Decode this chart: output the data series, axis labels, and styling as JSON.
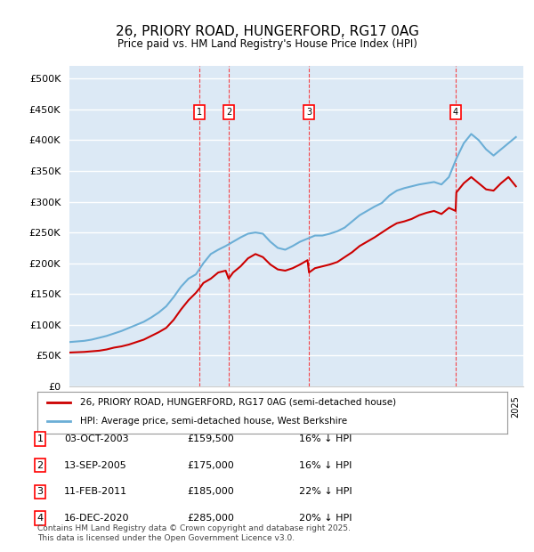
{
  "title": "26, PRIORY ROAD, HUNGERFORD, RG17 0AG",
  "subtitle": "Price paid vs. HM Land Registry's House Price Index (HPI)",
  "ylabel_ticks": [
    "£0",
    "£50K",
    "£100K",
    "£150K",
    "£200K",
    "£250K",
    "£300K",
    "£350K",
    "£400K",
    "£450K",
    "£500K"
  ],
  "ytick_values": [
    0,
    50000,
    100000,
    150000,
    200000,
    250000,
    300000,
    350000,
    400000,
    450000,
    500000
  ],
  "ylim": [
    0,
    520000
  ],
  "xlim_start": 1995.0,
  "xlim_end": 2025.5,
  "background_color": "#dce9f5",
  "plot_bg_color": "#dce9f5",
  "grid_color": "#ffffff",
  "sale_color": "#cc0000",
  "hpi_color": "#6baed6",
  "legend_box_label": "26, PRIORY ROAD, HUNGERFORD, RG17 0AG (semi-detached house)",
  "legend_hpi_label": "HPI: Average price, semi-detached house, West Berkshire",
  "footer": "Contains HM Land Registry data © Crown copyright and database right 2025.\nThis data is licensed under the Open Government Licence v3.0.",
  "sales": [
    {
      "num": 1,
      "date": "03-OCT-2003",
      "price": 159500,
      "pct": "16%",
      "x": 2003.75
    },
    {
      "num": 2,
      "date": "13-SEP-2005",
      "price": 175000,
      "pct": "16%",
      "x": 2005.7
    },
    {
      "num": 3,
      "date": "11-FEB-2011",
      "price": 185000,
      "pct": "22%",
      "x": 2011.1
    },
    {
      "num": 4,
      "date": "16-DEC-2020",
      "price": 285000,
      "pct": "20%",
      "x": 2020.95
    }
  ],
  "hpi_x": [
    1995,
    1995.5,
    1996,
    1996.5,
    1997,
    1997.5,
    1998,
    1998.5,
    1999,
    1999.5,
    2000,
    2000.5,
    2001,
    2001.5,
    2002,
    2002.5,
    2003,
    2003.5,
    2004,
    2004.5,
    2005,
    2005.5,
    2006,
    2006.5,
    2007,
    2007.5,
    2008,
    2008.5,
    2009,
    2009.5,
    2010,
    2010.5,
    2011,
    2011.5,
    2012,
    2012.5,
    2013,
    2013.5,
    2014,
    2014.5,
    2015,
    2015.5,
    2016,
    2016.5,
    2017,
    2017.5,
    2018,
    2018.5,
    2019,
    2019.5,
    2020,
    2020.5,
    2021,
    2021.5,
    2022,
    2022.5,
    2023,
    2023.5,
    2024,
    2024.5,
    2025
  ],
  "hpi_y": [
    72000,
    73000,
    74000,
    76000,
    79000,
    82000,
    86000,
    90000,
    95000,
    100000,
    105000,
    112000,
    120000,
    130000,
    145000,
    162000,
    175000,
    182000,
    200000,
    215000,
    222000,
    228000,
    235000,
    242000,
    248000,
    250000,
    248000,
    235000,
    225000,
    222000,
    228000,
    235000,
    240000,
    245000,
    245000,
    248000,
    252000,
    258000,
    268000,
    278000,
    285000,
    292000,
    298000,
    310000,
    318000,
    322000,
    325000,
    328000,
    330000,
    332000,
    328000,
    340000,
    370000,
    395000,
    410000,
    400000,
    385000,
    375000,
    385000,
    395000,
    405000
  ],
  "sale_x": [
    1995,
    1995.5,
    1996,
    1996.5,
    1997,
    1997.5,
    1998,
    1998.5,
    1999,
    1999.5,
    2000,
    2000.5,
    2001,
    2001.5,
    2002,
    2002.5,
    2003,
    2003.5,
    2003.75,
    2004,
    2004.5,
    2005,
    2005.5,
    2005.7,
    2006,
    2006.5,
    2007,
    2007.5,
    2008,
    2008.5,
    2009,
    2009.5,
    2010,
    2010.5,
    2011,
    2011.1,
    2011.5,
    2012,
    2012.5,
    2013,
    2013.5,
    2014,
    2014.5,
    2015,
    2015.5,
    2016,
    2016.5,
    2017,
    2017.5,
    2018,
    2018.5,
    2019,
    2019.5,
    2020,
    2020.5,
    2020.95,
    2021,
    2021.5,
    2022,
    2022.5,
    2023,
    2023.5,
    2024,
    2024.5,
    2025
  ],
  "sale_y": [
    55000,
    55500,
    56000,
    57000,
    58000,
    60000,
    63000,
    65000,
    68000,
    72000,
    76000,
    82000,
    88000,
    95000,
    108000,
    125000,
    140000,
    152000,
    159500,
    168000,
    175000,
    185000,
    188000,
    175000,
    185000,
    195000,
    208000,
    215000,
    210000,
    198000,
    190000,
    188000,
    192000,
    198000,
    205000,
    185000,
    192000,
    195000,
    198000,
    202000,
    210000,
    218000,
    228000,
    235000,
    242000,
    250000,
    258000,
    265000,
    268000,
    272000,
    278000,
    282000,
    285000,
    280000,
    290000,
    285000,
    315000,
    330000,
    340000,
    330000,
    320000,
    318000,
    330000,
    340000,
    325000
  ]
}
